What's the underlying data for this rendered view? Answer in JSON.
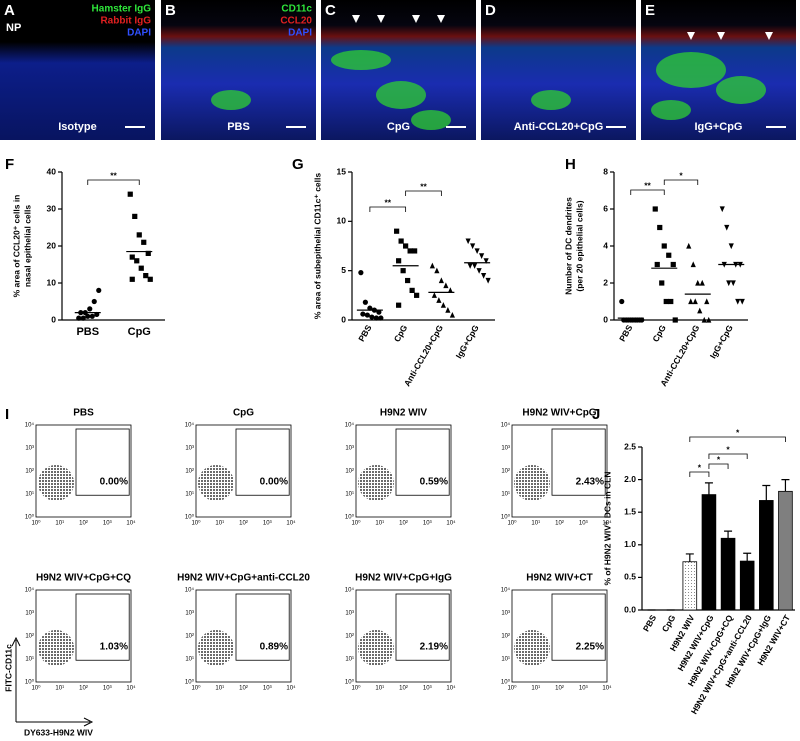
{
  "image_panels": [
    {
      "letter": "A",
      "caption": "Isotype",
      "inset": "NP",
      "stains": [
        "Hamster IgG",
        "Rabbit IgG",
        "DAPI"
      ]
    },
    {
      "letter": "B",
      "caption": "PBS",
      "stains": [
        "CD11c",
        "CCL20",
        "DAPI"
      ]
    },
    {
      "letter": "C",
      "caption": "CpG"
    },
    {
      "letter": "D",
      "caption": "Anti-CCL20+CpG"
    },
    {
      "letter": "E",
      "caption": "IgG+CpG"
    }
  ],
  "chart_data": [
    {
      "type": "strip",
      "label": "F",
      "y_label": [
        "% area of CCL20⁺ cells in",
        "nasal epithelial cells"
      ],
      "ylim": [
        0,
        40
      ],
      "yticks": [
        0,
        10,
        20,
        30,
        40
      ],
      "groups": [
        {
          "category": "PBS",
          "values": [
            0.5,
            0.5,
            1,
            1,
            1.5,
            2,
            2,
            3,
            5,
            8
          ],
          "mean": 2
        },
        {
          "category": "CpG",
          "values": [
            34,
            28,
            23,
            21,
            18,
            17,
            16,
            14,
            12,
            11,
            11
          ],
          "mean": 18.5
        }
      ],
      "annotations": [
        {
          "text": "**"
        }
      ]
    },
    {
      "type": "strip",
      "label": "G",
      "y_label": [
        "% area of subepithelial CD11c⁺ cells"
      ],
      "ylim": [
        0,
        15
      ],
      "yticks": [
        0,
        5,
        10,
        15
      ],
      "groups": [
        {
          "category": "PBS",
          "values": [
            4.8,
            1.8,
            1.2,
            1,
            0.8,
            0.6,
            0.5,
            0.3,
            0.2,
            0.2
          ],
          "mean": 1
        },
        {
          "category": "CpG",
          "values": [
            9,
            8,
            7.5,
            7,
            7,
            6,
            5,
            4,
            3,
            2.5,
            1.5
          ],
          "mean": 5.5
        },
        {
          "category": "Anti-CCL20+CpG",
          "values": [
            5.5,
            5,
            4,
            3.5,
            3,
            2.5,
            2,
            1.5,
            1,
            0.5
          ],
          "mean": 2.8
        },
        {
          "category": "IgG+CpG",
          "values": [
            8,
            7.5,
            7,
            6.5,
            6,
            5.5,
            5.5,
            5,
            4.5,
            4
          ],
          "mean": 5.8
        }
      ],
      "annotations": [
        {
          "text": "**"
        },
        {
          "text": "**"
        }
      ]
    },
    {
      "type": "strip",
      "label": "H",
      "y_label": [
        "Number of DC dendrites",
        "(per 20 epithelial cells)"
      ],
      "ylim": [
        0,
        8
      ],
      "yticks": [
        0,
        2,
        4,
        6,
        8
      ],
      "groups": [
        {
          "category": "PBS",
          "values": [
            1,
            0,
            0,
            0,
            0,
            0,
            0,
            0,
            0,
            0
          ],
          "mean": 0.1
        },
        {
          "category": "CpG",
          "values": [
            6,
            5,
            4,
            3.5,
            3,
            3,
            2,
            1,
            1,
            0
          ],
          "mean": 2.8
        },
        {
          "category": "Anti-CCL20+CpG",
          "values": [
            4,
            3,
            2,
            2,
            1,
            1,
            1,
            0.5,
            0,
            0
          ],
          "mean": 1.4
        },
        {
          "category": "IgG+CpG",
          "values": [
            6,
            5,
            4,
            3,
            3,
            3,
            2,
            2,
            1,
            1
          ],
          "mean": 3
        }
      ],
      "annotations": [
        {
          "text": "**"
        },
        {
          "text": "*"
        }
      ]
    },
    {
      "type": "bar",
      "label": "J",
      "y_label": "% of H9N2 WIV⁺ DCs in CLN",
      "categories": [
        "PBS",
        "CpG",
        "H9N2 WIV",
        "H9N2 WIV+CpG",
        "H9N2 WIV+CpG+CQ",
        "H9N2 WIV+CpG+anti-CCL20",
        "H9N2 WIV+CpG+IgG",
        "H9N2 WIV+CT"
      ],
      "values": [
        0,
        0,
        0.74,
        1.77,
        1.1,
        0.75,
        1.68,
        1.82
      ],
      "errors": [
        0,
        0,
        0.12,
        0.18,
        0.11,
        0.12,
        0.23,
        0.18
      ],
      "colors": [
        "#000000",
        "#000000",
        "#f0f0f0",
        "#000000",
        "#000000",
        "#000000",
        "#000000",
        "#7f7f7f"
      ],
      "ylim": [
        0,
        2.5
      ],
      "yticks": [
        {
          "value": 0,
          "label": "0.0"
        },
        0.5,
        {
          "value": 1,
          "label": "1.0"
        },
        1.5,
        {
          "value": 2,
          "label": "2.0"
        },
        2.5
      ],
      "annotations": [
        {
          "text": "*"
        },
        {
          "text": "*"
        },
        {
          "text": "*"
        },
        {
          "text": "*"
        }
      ]
    }
  ],
  "flow": {
    "label": "I",
    "y_label": "FITC-CD11c",
    "x_label": "DY633-H9N2 WIV",
    "tick_labels": [
      "10⁰",
      "10¹",
      "10²",
      "10³",
      "10⁴"
    ],
    "panels": [
      {
        "title": "PBS",
        "gate_label": "0.00%"
      },
      {
        "title": "CpG",
        "gate_label": "0.00%"
      },
      {
        "title": "H9N2 WIV",
        "gate_label": "0.59%"
      },
      {
        "title": "H9N2 WIV+CpG",
        "gate_label": "2.43%"
      },
      {
        "title": "H9N2 WIV+CpG+CQ",
        "gate_label": "1.03%"
      },
      {
        "title": "H9N2 WIV+CpG+anti-CCL20",
        "gate_label": "0.89%"
      },
      {
        "title": "H9N2 WIV+CpG+IgG",
        "gate_label": "2.19%"
      },
      {
        "title": "H9N2 WIV+CT",
        "gate_label": "2.25%"
      }
    ]
  }
}
